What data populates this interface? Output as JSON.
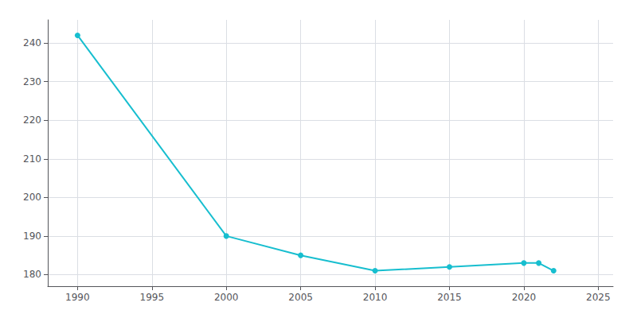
{
  "chart_data": {
    "type": "line",
    "x": [
      1990,
      2000,
      2005,
      2010,
      2015,
      2020,
      2021,
      2022
    ],
    "values": [
      242,
      190,
      185,
      181,
      182,
      183,
      183,
      181
    ],
    "color": "#17becf",
    "marker": "circle",
    "xlim": [
      1988,
      2026
    ],
    "xticks": [
      1990,
      1995,
      2000,
      2005,
      2010,
      2015,
      2020,
      2025
    ],
    "ylim": [
      177,
      246
    ],
    "yticks": [
      180,
      190,
      200,
      210,
      220,
      230,
      240
    ],
    "grid": true
  }
}
